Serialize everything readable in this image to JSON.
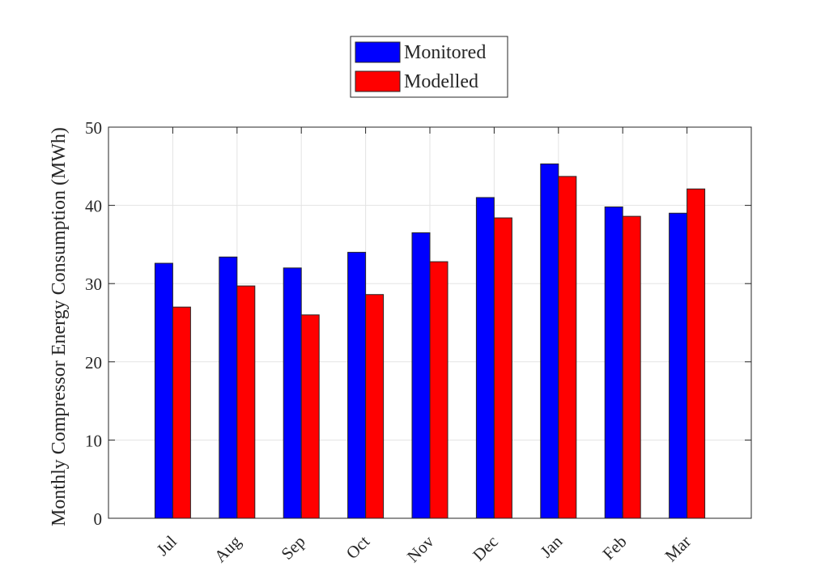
{
  "chart_data": {
    "type": "bar",
    "title": "",
    "xlabel": "",
    "ylabel": "Monthly Compressor Energy Consumption (MWh)",
    "categories": [
      "Jul",
      "Aug",
      "Sep",
      "Oct",
      "Nov",
      "Dec",
      "Jan",
      "Feb",
      "Mar"
    ],
    "series": [
      {
        "name": "Monitored",
        "color": "#0000ff",
        "values": [
          32.6,
          33.4,
          32.0,
          34.0,
          36.5,
          41.0,
          45.3,
          39.8,
          39.0
        ]
      },
      {
        "name": "Modelled",
        "color": "#ff0000",
        "values": [
          27.0,
          29.7,
          26.0,
          28.6,
          32.8,
          38.4,
          43.7,
          38.6,
          42.1
        ]
      }
    ],
    "ylim": [
      0,
      50
    ],
    "yticks": [
      0,
      10,
      20,
      30,
      40,
      50
    ],
    "grid": true,
    "legend_position": "top-center"
  }
}
